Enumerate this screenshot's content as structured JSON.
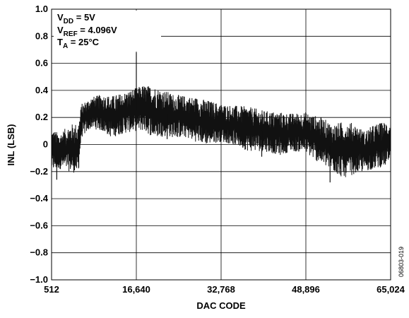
{
  "chart_data": {
    "type": "line",
    "xlabel": "DAC CODE",
    "ylabel": "INL (LSB)",
    "xlim": [
      512,
      65024
    ],
    "ylim": [
      -1.0,
      1.0
    ],
    "xticks": [
      512,
      16640,
      32768,
      48896,
      65024
    ],
    "xtick_labels": [
      "512",
      "16,640",
      "32,768",
      "48,896",
      "65,024"
    ],
    "yticks": [
      -1.0,
      -0.8,
      -0.6,
      -0.4,
      -0.2,
      0,
      0.2,
      0.4,
      0.6,
      0.8,
      1.0
    ],
    "ytick_labels": [
      "−1.0",
      "−0.8",
      "−0.6",
      "−0.4",
      "−0.2",
      "0",
      "0.2",
      "0.4",
      "0.6",
      "0.8",
      "1.0"
    ],
    "grid": true,
    "annotations": {
      "vdd": {
        "main": "V",
        "sub": "DD",
        "rest": " = 5V"
      },
      "vref": {
        "main": "V",
        "sub": "REF",
        "rest": " = 4.096V"
      },
      "ta": {
        "main": "T",
        "sub": "A",
        "rest": " = 25°C"
      }
    },
    "figure_id": "06803-019",
    "series": [
      {
        "envelope": {
          "x": [
            512,
            2000,
            4000,
            5600,
            6200,
            8000,
            10000,
            12000,
            14000,
            16640,
            18000,
            20000,
            22000,
            24000,
            26000,
            28000,
            30000,
            32768,
            35000,
            38000,
            41000,
            44000,
            46000,
            48896,
            50000,
            52000,
            54000,
            56000,
            58000,
            60000,
            62000,
            65024
          ],
          "upper": [
            0.12,
            0.08,
            0.15,
            0.16,
            0.3,
            0.35,
            0.37,
            0.36,
            0.38,
            0.42,
            0.44,
            0.43,
            0.4,
            0.37,
            0.36,
            0.35,
            0.33,
            0.3,
            0.29,
            0.28,
            0.25,
            0.24,
            0.23,
            0.24,
            0.22,
            0.2,
            0.15,
            0.17,
            0.16,
            0.1,
            0.15,
            0.18
          ],
          "lower": [
            -0.2,
            -0.18,
            -0.2,
            -0.22,
            0.05,
            0.12,
            0.1,
            0.05,
            0.08,
            0.1,
            0.1,
            0.05,
            0.06,
            0.05,
            0.05,
            0.02,
            0.0,
            0.02,
            0.0,
            -0.05,
            -0.05,
            -0.08,
            -0.05,
            -0.06,
            -0.1,
            -0.15,
            -0.2,
            -0.25,
            -0.22,
            -0.2,
            -0.18,
            -0.15
          ]
        },
        "spikes": [
          {
            "x": 16640,
            "y": 0.68
          },
          {
            "x": 1500,
            "y": -0.26
          },
          {
            "x": 53500,
            "y": -0.28
          },
          {
            "x": 22500,
            "y": 0.04
          },
          {
            "x": 40500,
            "y": -0.09
          }
        ]
      }
    ]
  }
}
